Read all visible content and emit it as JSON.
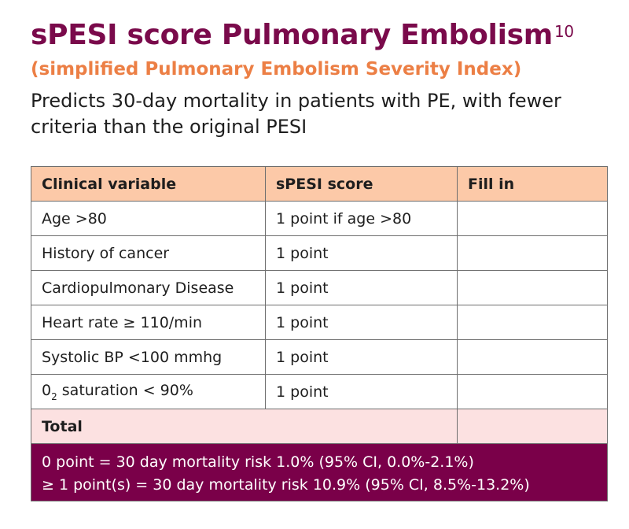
{
  "header": {
    "title": "sPESI score Pulmonary Embolism",
    "title_ref": "10",
    "subtitle": "(simplified Pulmonary Embolism Severity Index)",
    "description": "Predicts 30-day mortality in patients with PE, with fewer criteria than the original PESI"
  },
  "table": {
    "columns": [
      "Clinical variable",
      "sPESI score",
      "Fill in"
    ],
    "rows": [
      {
        "variable": "Age >80",
        "score": "1 point if age >80",
        "fill": ""
      },
      {
        "variable": "History of cancer",
        "score": "1 point",
        "fill": ""
      },
      {
        "variable": "Cardiopulmonary Disease",
        "score": "1 point",
        "fill": ""
      },
      {
        "variable": "Heart rate ≥ 110/min",
        "score": "1 point",
        "fill": ""
      },
      {
        "variable": "Systolic BP <100 mmhg",
        "score": "1 point",
        "fill": ""
      },
      {
        "variable_prefix": "0",
        "variable_sub": "2",
        "variable_suffix": " saturation < 90%",
        "score": "1 point",
        "fill": ""
      }
    ],
    "total_label": "Total",
    "total_value": "",
    "interpretation": [
      "0 point = 30 day mortality risk 1.0% (95% CI, 0.0%-2.1%)",
      "≥ 1 point(s) = 30 day mortality risk 10.9% (95% CI, 8.5%-13.2%)"
    ]
  },
  "colors": {
    "title": "#7a0a4b",
    "subtitle": "#ec7f45",
    "header_fill": "#fcc9a8",
    "total_fill": "#fce1e1",
    "footer_fill": "#7a0049"
  }
}
